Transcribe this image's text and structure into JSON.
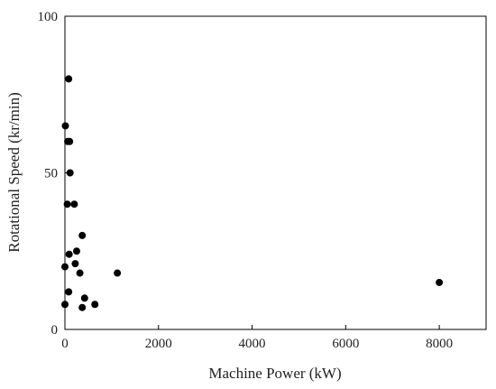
{
  "chart_data": {
    "type": "scatter",
    "title": "",
    "xlabel": "Machine Power (kW)",
    "ylabel": "Rotational Speed (kr/min)",
    "xlim": [
      0,
      9000
    ],
    "ylim": [
      0,
      100
    ],
    "x_ticks": [
      0,
      2000,
      4000,
      6000,
      8000
    ],
    "y_ticks": [
      0,
      50,
      100
    ],
    "grid": false,
    "legend": "none",
    "marker_color": "#000000",
    "points": [
      {
        "x": 80,
        "y": 80
      },
      {
        "x": 10,
        "y": 65
      },
      {
        "x": 100,
        "y": 60
      },
      {
        "x": 60,
        "y": 60
      },
      {
        "x": 110,
        "y": 50
      },
      {
        "x": 50,
        "y": 40
      },
      {
        "x": 200,
        "y": 40
      },
      {
        "x": 370,
        "y": 30
      },
      {
        "x": 250,
        "y": 25
      },
      {
        "x": 90,
        "y": 24
      },
      {
        "x": 0,
        "y": 20
      },
      {
        "x": 220,
        "y": 21
      },
      {
        "x": 320,
        "y": 18
      },
      {
        "x": 1120,
        "y": 18
      },
      {
        "x": 80,
        "y": 12
      },
      {
        "x": 420,
        "y": 10
      },
      {
        "x": 0,
        "y": 8
      },
      {
        "x": 640,
        "y": 8
      },
      {
        "x": 370,
        "y": 7
      },
      {
        "x": 8000,
        "y": 15
      }
    ]
  }
}
